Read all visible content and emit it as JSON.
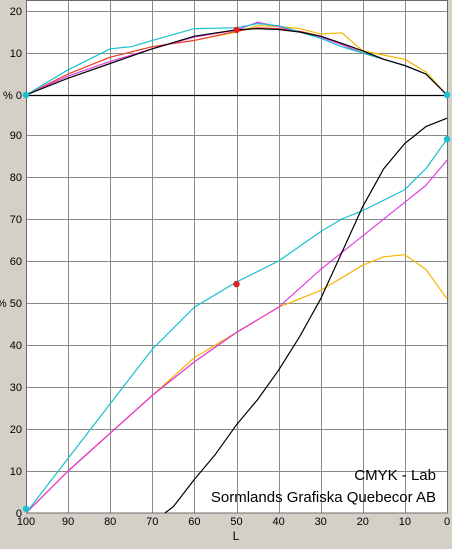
{
  "chart_data": {
    "type": "line",
    "annotation": {
      "line1": "CMYK - Lab",
      "line2": "Sormlands Grafiska Quebecor AB"
    },
    "xlabel": "L",
    "x_ticks": [
      "100",
      "90",
      "80",
      "70",
      "60",
      "50",
      "40",
      "30",
      "20",
      "10",
      "0"
    ],
    "xlim": [
      100,
      0
    ],
    "top_panel": {
      "ylim": [
        0,
        20
      ],
      "y_ticks": [
        "20",
        "10",
        "% 0"
      ],
      "series": [
        {
          "color": "#f4b400",
          "x": [
            100,
            90,
            80,
            70,
            60,
            50,
            45,
            40,
            35,
            30,
            25,
            20,
            15,
            10,
            5,
            0
          ],
          "y": [
            0,
            5,
            9,
            11.5,
            13,
            15,
            16.5,
            16.3,
            15.8,
            14.5,
            14.8,
            10.5,
            9.5,
            8.5,
            5.5,
            0
          ]
        },
        {
          "color": "#e8403c",
          "x": [
            100,
            90,
            80,
            70,
            60,
            50,
            45,
            40,
            35,
            30,
            25,
            20,
            15,
            10,
            5,
            0
          ],
          "y": [
            0,
            5,
            9,
            11.5,
            13,
            15.2,
            16,
            15.8,
            15.2,
            14,
            12,
            10,
            8.5,
            7,
            5,
            0
          ]
        },
        {
          "color": "#e23de2",
          "x": [
            100,
            90,
            80,
            70,
            60,
            50,
            45,
            40,
            35,
            30,
            25,
            20,
            15,
            10,
            5,
            0
          ],
          "y": [
            0,
            4.5,
            8,
            11,
            13.8,
            15.5,
            17.3,
            16.3,
            15,
            13.8,
            12,
            10,
            8.5,
            7,
            5,
            0
          ]
        },
        {
          "color": "#18c0d0",
          "x": [
            100,
            90,
            80,
            75,
            70,
            60,
            50,
            45,
            40,
            35,
            30,
            25,
            20,
            15,
            10,
            5,
            0
          ],
          "y": [
            0,
            6,
            11,
            11.5,
            13,
            15.8,
            16,
            17,
            16.5,
            15,
            13.5,
            11.5,
            10,
            8.5,
            7,
            5,
            0
          ]
        },
        {
          "color": "#000000",
          "x": [
            100,
            90,
            80,
            70,
            60,
            50,
            45,
            40,
            35,
            30,
            25,
            20,
            15,
            10,
            5,
            0
          ],
          "y": [
            0,
            4,
            7.5,
            11,
            14,
            15.5,
            15.8,
            15.6,
            15,
            14,
            12.3,
            10.5,
            8.5,
            7,
            5,
            0
          ]
        }
      ],
      "markers": [
        {
          "x": 100,
          "y": 0,
          "color": "#18c0d0"
        },
        {
          "x": 0,
          "y": 0,
          "color": "#18c0d0"
        },
        {
          "x": 50,
          "y": 15.5,
          "color": "#e02020"
        }
      ]
    },
    "bottom_panel": {
      "ylim": [
        0,
        100
      ],
      "y_ticks": [
        "90",
        "80",
        "70",
        "60",
        "% 50",
        "40",
        "30",
        "20",
        "10",
        "0"
      ],
      "series": [
        {
          "color": "#f4b400",
          "x": [
            100,
            90,
            80,
            70,
            60,
            50,
            40,
            30,
            20,
            15,
            10,
            5,
            0
          ],
          "y": [
            0,
            10,
            19,
            28,
            37,
            43,
            49,
            53,
            59,
            61,
            61.5,
            58,
            51
          ]
        },
        {
          "color": "#e8403c",
          "x": [
            100,
            95,
            90,
            80,
            70,
            60,
            50,
            45
          ],
          "y": [
            0,
            5,
            10,
            19,
            28,
            36,
            43,
            46
          ]
        },
        {
          "color": "#e23de2",
          "x": [
            100,
            90,
            80,
            70,
            60,
            50,
            40,
            30,
            20,
            10,
            5,
            0
          ],
          "y": [
            0,
            10,
            19,
            28,
            36,
            43,
            49,
            58,
            66,
            74,
            78,
            84
          ]
        },
        {
          "color": "#18c0d0",
          "x": [
            100,
            90,
            80,
            70,
            62,
            60,
            50,
            40,
            30,
            25,
            20,
            10,
            5,
            0
          ],
          "y": [
            0,
            13,
            26,
            39,
            47,
            49,
            55,
            60,
            67,
            70,
            72,
            77,
            82,
            89
          ]
        },
        {
          "color": "#000000",
          "x": [
            67,
            65,
            60,
            55,
            50,
            45,
            40,
            35,
            30,
            25,
            20,
            15,
            10,
            5,
            0
          ],
          "y": [
            0,
            1.5,
            8,
            14,
            21,
            27,
            34,
            42,
            51,
            62,
            73,
            82,
            88,
            92,
            94
          ]
        }
      ],
      "markers": [
        {
          "x": 100,
          "y": 1,
          "color": "#18c0d0"
        },
        {
          "x": 0,
          "y": 89,
          "color": "#18c0d0"
        },
        {
          "x": 50,
          "y": 54.5,
          "color": "#e02020"
        }
      ]
    }
  }
}
